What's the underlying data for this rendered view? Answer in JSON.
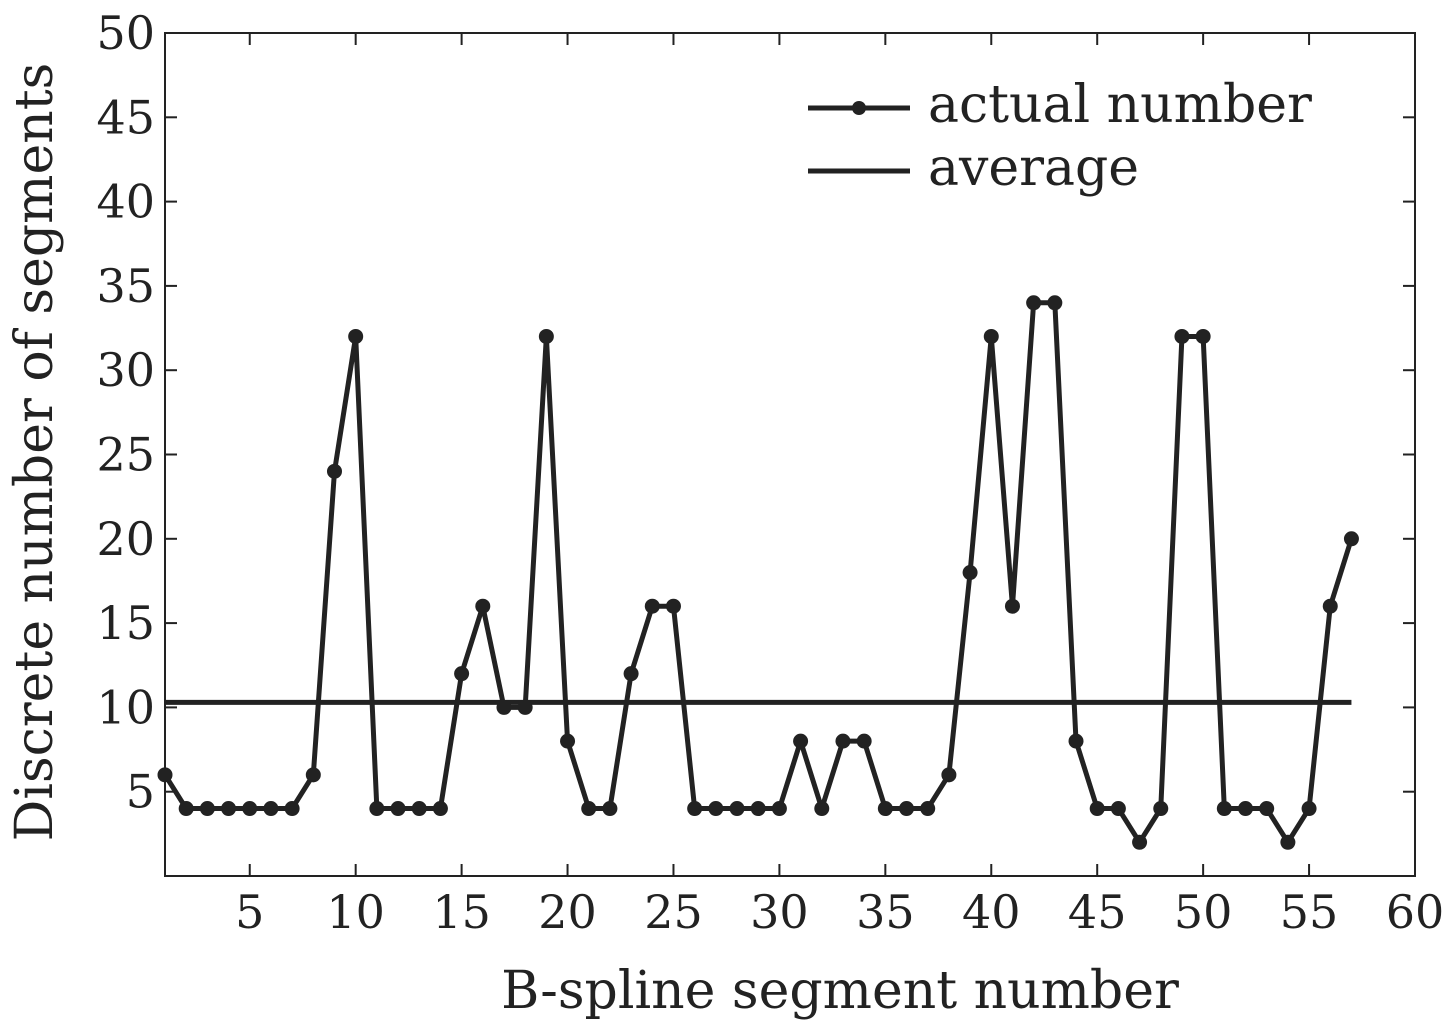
{
  "chart_data": {
    "type": "line",
    "title": "",
    "xlabel": "B-spline segment number",
    "ylabel": "Discrete number of segments",
    "xlim": [
      1,
      60
    ],
    "ylim": [
      0,
      50
    ],
    "xticks": [
      5,
      10,
      15,
      20,
      25,
      30,
      35,
      40,
      45,
      50,
      55,
      60
    ],
    "yticks": [
      5,
      10,
      15,
      20,
      25,
      30,
      35,
      40,
      45,
      50
    ],
    "grid": false,
    "legend_position": "top-right",
    "line_color": "#222222",
    "series": [
      {
        "name": "actual number",
        "marker": "circle",
        "x": [
          1,
          2,
          3,
          4,
          5,
          6,
          7,
          8,
          9,
          10,
          11,
          12,
          13,
          14,
          15,
          16,
          17,
          18,
          19,
          20,
          21,
          22,
          23,
          24,
          25,
          26,
          27,
          28,
          29,
          30,
          31,
          32,
          33,
          34,
          35,
          36,
          37,
          38,
          39,
          40,
          41,
          42,
          43,
          44,
          45,
          46,
          47,
          48,
          49,
          50,
          51,
          52,
          53,
          54,
          55,
          56,
          57
        ],
        "y": [
          6,
          4,
          4,
          4,
          4,
          4,
          4,
          6,
          24,
          32,
          4,
          4,
          4,
          4,
          12,
          16,
          10,
          10,
          32,
          8,
          4,
          4,
          12,
          16,
          16,
          4,
          4,
          4,
          4,
          4,
          8,
          4,
          8,
          8,
          4,
          4,
          4,
          6,
          18,
          32,
          16,
          34,
          34,
          8,
          4,
          4,
          2,
          4,
          32,
          32,
          4,
          4,
          4,
          2,
          4,
          16,
          20
        ]
      },
      {
        "name": "average",
        "marker": "none",
        "x": [
          1,
          57
        ],
        "y": [
          10.3,
          10.3
        ]
      }
    ]
  }
}
